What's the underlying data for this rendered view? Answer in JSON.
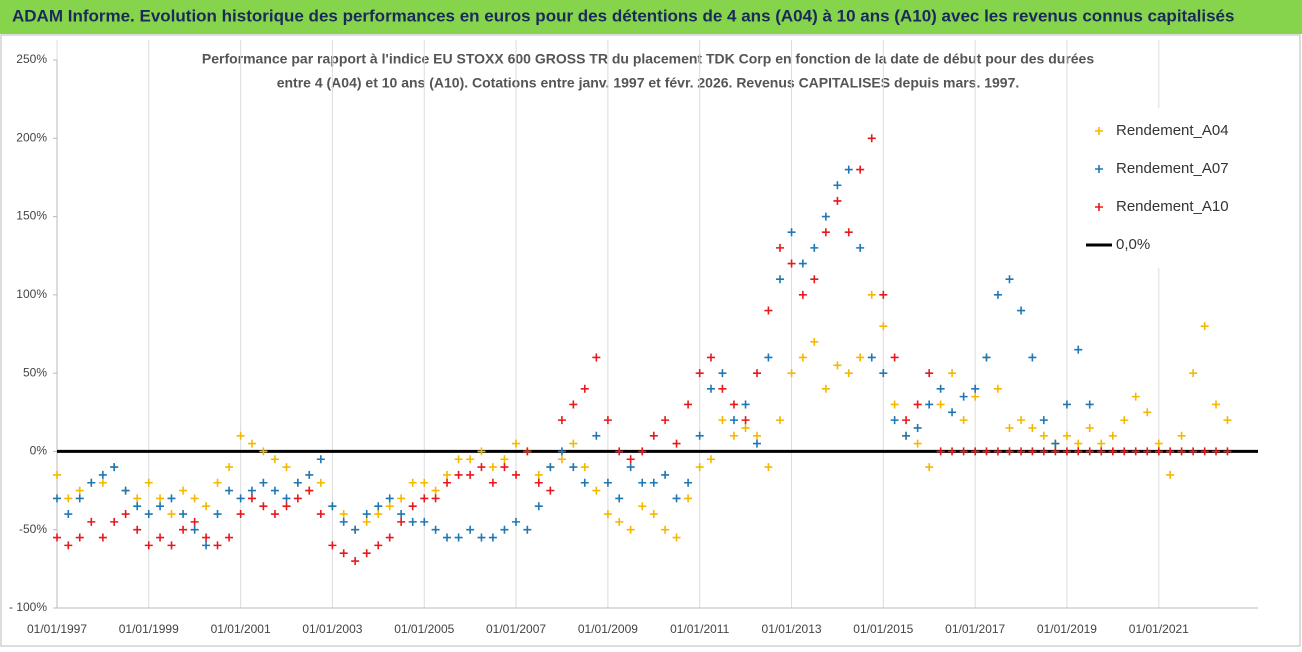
{
  "chart_data": {
    "type": "scatter",
    "title": "ADAM Informe. Evolution historique des performances en euros pour des détentions de 4 ans (A04) à 10 ans (A10) avec les revenus connus capitalisés",
    "subtitle": [
      "Performance par rapport à l'indice EU STOXX 600 GROSS TR  du placement TDK Corp en fonction de la date de début pour des durées",
      "entre 4 (A04) et 10 ans (A10). Cotations entre janv. 1997 et févr. 2026. Revenus CAPITALISES depuis mars. 1997."
    ],
    "x": [
      "1997-01-01",
      "1997-04-01",
      "1997-07-01",
      "1997-10-01",
      "1998-01-01",
      "1998-04-01",
      "1998-07-01",
      "1998-10-01",
      "1999-01-01",
      "1999-04-01",
      "1999-07-01",
      "1999-10-01",
      "2000-01-01",
      "2000-04-01",
      "2000-07-01",
      "2000-10-01",
      "2001-01-01",
      "2001-04-01",
      "2001-07-01",
      "2001-10-01",
      "2002-01-01",
      "2002-04-01",
      "2002-07-01",
      "2002-10-01",
      "2003-01-01",
      "2003-04-01",
      "2003-07-01",
      "2003-10-01",
      "2004-01-01",
      "2004-04-01",
      "2004-07-01",
      "2004-10-01",
      "2005-01-01",
      "2005-04-01",
      "2005-07-01",
      "2005-10-01",
      "2006-01-01",
      "2006-04-01",
      "2006-07-01",
      "2006-10-01",
      "2007-01-01",
      "2007-04-01",
      "2007-07-01",
      "2007-10-01",
      "2008-01-01",
      "2008-04-01",
      "2008-07-01",
      "2008-10-01",
      "2009-01-01",
      "2009-04-01",
      "2009-07-01",
      "2009-10-01",
      "2010-01-01",
      "2010-04-01",
      "2010-07-01",
      "2010-10-01",
      "2011-01-01",
      "2011-04-01",
      "2011-07-01",
      "2011-10-01",
      "2012-01-01",
      "2012-04-01",
      "2012-07-01",
      "2012-10-01",
      "2013-01-01",
      "2013-04-01",
      "2013-07-01",
      "2013-10-01",
      "2014-01-01",
      "2014-04-01",
      "2014-07-01",
      "2014-10-01",
      "2015-01-01",
      "2015-04-01",
      "2015-07-01",
      "2015-10-01",
      "2016-01-01",
      "2016-04-01",
      "2016-07-01",
      "2016-10-01",
      "2017-01-01",
      "2017-04-01",
      "2017-07-01",
      "2017-10-01",
      "2018-01-01",
      "2018-04-01",
      "2018-07-01",
      "2018-10-01",
      "2019-01-01",
      "2019-04-01",
      "2019-07-01",
      "2019-10-01",
      "2020-01-01",
      "2020-04-01",
      "2020-07-01",
      "2020-10-01",
      "2021-01-01",
      "2021-04-01",
      "2021-07-01",
      "2021-10-01",
      "2022-01-01",
      "2022-04-01",
      "2022-07-01"
    ],
    "series": [
      {
        "name": "Rendement_A04",
        "color": "#f5b800",
        "values": [
          -15,
          -30,
          -25,
          -20,
          -20,
          -10,
          -25,
          -30,
          -20,
          -30,
          -40,
          -25,
          -30,
          -35,
          -20,
          -10,
          10,
          5,
          0,
          -5,
          -10,
          -20,
          -25,
          -20,
          -35,
          -40,
          -50,
          -45,
          -40,
          -35,
          -30,
          -20,
          -20,
          -25,
          -15,
          -5,
          -5,
          0,
          -10,
          -5,
          5,
          0,
          -15,
          -10,
          -5,
          5,
          -10,
          -25,
          -40,
          -45,
          -50,
          -35,
          -40,
          -50,
          -55,
          -30,
          -10,
          -5,
          20,
          10,
          15,
          10,
          -10,
          20,
          50,
          60,
          70,
          40,
          55,
          50,
          60,
          100,
          80,
          30,
          10,
          5,
          -10,
          30,
          50,
          20,
          35,
          60,
          40,
          15,
          20,
          15,
          10,
          5,
          10,
          5,
          15,
          5,
          10,
          20,
          35,
          25,
          5,
          -15,
          10,
          50,
          80,
          30,
          20
        ]
      },
      {
        "name": "Rendement_A07",
        "color": "#1f77b4",
        "values": [
          -30,
          -40,
          -30,
          -20,
          -15,
          -10,
          -25,
          -35,
          -40,
          -35,
          -30,
          -40,
          -50,
          -60,
          -40,
          -25,
          -30,
          -25,
          -20,
          -25,
          -30,
          -20,
          -15,
          -5,
          -35,
          -45,
          -50,
          -40,
          -35,
          -30,
          -40,
          -45,
          -45,
          -50,
          -55,
          -55,
          -50,
          -55,
          -55,
          -50,
          -45,
          -50,
          -35,
          -10,
          0,
          -10,
          -20,
          10,
          -20,
          -30,
          -10,
          -20,
          -20,
          -15,
          -30,
          -20,
          10,
          40,
          50,
          20,
          30,
          5,
          60,
          110,
          140,
          120,
          130,
          150,
          170,
          180,
          130,
          60,
          50,
          20,
          10,
          15,
          30,
          40,
          25,
          35,
          40,
          60,
          100,
          110,
          90,
          60,
          20,
          5,
          30,
          65,
          30,
          null,
          null,
          null,
          null,
          null,
          null,
          null,
          null,
          null,
          null,
          null,
          null
        ]
      },
      {
        "name": "Rendement_A10",
        "color": "#e8191c",
        "values": [
          -55,
          -60,
          -55,
          -45,
          -55,
          -45,
          -40,
          -50,
          -60,
          -55,
          -60,
          -50,
          -45,
          -55,
          -60,
          -55,
          -40,
          -30,
          -35,
          -40,
          -35,
          -30,
          -25,
          -40,
          -60,
          -65,
          -70,
          -65,
          -60,
          -55,
          -45,
          -35,
          -30,
          -30,
          -20,
          -15,
          -15,
          -10,
          -20,
          -10,
          -15,
          0,
          -20,
          -25,
          20,
          30,
          40,
          60,
          20,
          0,
          -5,
          0,
          10,
          20,
          5,
          30,
          50,
          60,
          40,
          30,
          20,
          50,
          90,
          130,
          120,
          100,
          110,
          140,
          160,
          140,
          180,
          200,
          100,
          60,
          20,
          30,
          50,
          0,
          0,
          0,
          0,
          0,
          0,
          0,
          0,
          0,
          0,
          0,
          0,
          0,
          0,
          0,
          0,
          0,
          0,
          0,
          0,
          0,
          0,
          0,
          0,
          0,
          0
        ]
      }
    ],
    "reference_line": {
      "name": "0,0%",
      "value": 0,
      "color": "#000000"
    },
    "xlim": [
      "1997-01-01",
      "2023-03-01"
    ],
    "xticks": [
      {
        "value": "1997-01-01",
        "label": "01/01/1997"
      },
      {
        "value": "1999-01-01",
        "label": "01/01/1999"
      },
      {
        "value": "2001-01-01",
        "label": "01/01/2001"
      },
      {
        "value": "2003-01-01",
        "label": "01/01/2003"
      },
      {
        "value": "2005-01-01",
        "label": "01/01/2005"
      },
      {
        "value": "2007-01-01",
        "label": "01/01/2007"
      },
      {
        "value": "2009-01-01",
        "label": "01/01/2009"
      },
      {
        "value": "2011-01-01",
        "label": "01/01/2011"
      },
      {
        "value": "2013-01-01",
        "label": "01/01/2013"
      },
      {
        "value": "2015-01-01",
        "label": "01/01/2015"
      },
      {
        "value": "2017-01-01",
        "label": "01/01/2017"
      },
      {
        "value": "2019-01-01",
        "label": "01/01/2019"
      },
      {
        "value": "2021-01-01",
        "label": "01/01/2021"
      }
    ],
    "ylim": [
      -100,
      250
    ],
    "yticks": [
      {
        "value": -100,
        "label": "- 100%"
      },
      {
        "value": -50,
        "label": "-50%"
      },
      {
        "value": 0,
        "label": "0%"
      },
      {
        "value": 50,
        "label": "50%"
      },
      {
        "value": 100,
        "label": "100%"
      },
      {
        "value": 150,
        "label": "150%"
      },
      {
        "value": 200,
        "label": "200%"
      },
      {
        "value": 250,
        "label": "250%"
      }
    ],
    "grid": true,
    "legend": "upper right"
  }
}
